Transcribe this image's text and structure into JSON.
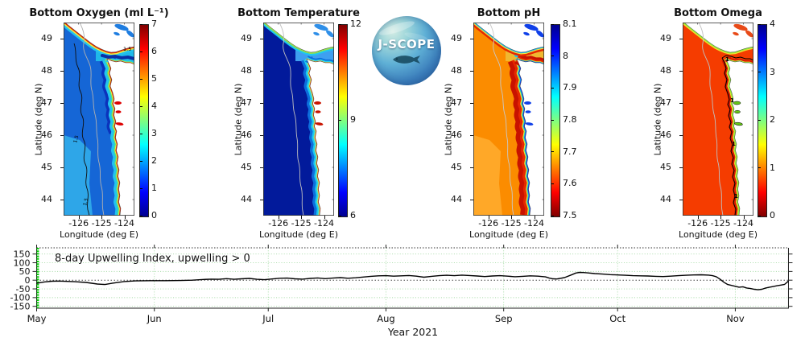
{
  "figure": {
    "background": "#ffffff"
  },
  "logo": {
    "label": "J-SCOPE"
  },
  "map_shared": {
    "ylabel": "Latitude (deg N)",
    "xlabel": "Longitude (deg E)",
    "lat_tick_labels": [
      "49",
      "48",
      "47",
      "46",
      "45",
      "44"
    ],
    "lon_tick_labels": [
      "-126",
      "-125",
      "-124"
    ],
    "land_color": "#FFFFFF",
    "jet_stops": [
      [
        0,
        "#00008F"
      ],
      [
        0.125,
        "#0000FF"
      ],
      [
        0.375,
        "#00FFFF"
      ],
      [
        0.625,
        "#FFFF00"
      ],
      [
        0.875,
        "#FF0000"
      ],
      [
        1,
        "#800000"
      ]
    ]
  },
  "panels": [
    {
      "id": "bottom-oxygen",
      "title": "Bottom Oxygen (ml L⁻¹)",
      "colorbar": {
        "min": 0,
        "max": 7,
        "tick_values": [
          0,
          1,
          2,
          3,
          4,
          5,
          6,
          7
        ],
        "tick_labels": [
          "0",
          "1",
          "2",
          "3",
          "4",
          "5",
          "6",
          "7"
        ],
        "reversed": false
      },
      "black_contour": "offshore",
      "contour_label": "1.5",
      "colors": {
        "base": "#1566D6",
        "sw": "#2EA6E8",
        "north_band": "#0B33BC",
        "coast_bands": [
          [
            "#23C3EF",
            13
          ],
          [
            "#52E57E",
            6.5
          ],
          [
            "#F2EE3E",
            4
          ],
          [
            "#E02800",
            2.2
          ]
        ],
        "vi_bands": [
          [
            "#23C3EF",
            11
          ],
          [
            "#F2EE3E",
            6
          ],
          [
            "#E02800",
            3
          ]
        ],
        "strait": "#1FB9EA",
        "strait_core": "#0A2FA5",
        "strait_patch": null,
        "georgia": "#1F7DE0",
        "estuary": "#DD0000",
        "estuary_stroke": null,
        "contour_gray": "#B0B0B0",
        "contour_black": "#101010"
      }
    },
    {
      "id": "bottom-temperature",
      "title": "Bottom Temperature",
      "colorbar": {
        "min": 6,
        "max": 12,
        "tick_values": [
          6,
          9,
          12
        ],
        "tick_labels": [
          "6",
          "9",
          "12"
        ],
        "reversed": false
      },
      "black_contour": null,
      "contour_label": null,
      "colors": {
        "base": "#021A9B",
        "sw": null,
        "north_band": null,
        "coast_bands": [
          [
            "#0D6EDC",
            15
          ],
          [
            "#1BC9F1",
            8.5
          ],
          [
            "#58E2C2",
            4.5
          ],
          [
            "#F0E840",
            2.6
          ],
          [
            "#E83000",
            1.4
          ]
        ],
        "vi_bands": [
          [
            "#1BC9F1",
            8
          ],
          [
            "#90E050",
            4
          ]
        ],
        "strait": "#3E9FF0",
        "strait_core": null,
        "strait_patch": null,
        "georgia": "#2F8FE8",
        "estuary": "#C81400",
        "estuary_stroke": null,
        "contour_gray": "#C0C0C0",
        "contour_black": null
      }
    },
    {
      "id": "bottom-ph",
      "title": "Bottom pH",
      "colorbar": {
        "min": 7.5,
        "max": 8.1,
        "tick_values": [
          7.5,
          7.6,
          7.7,
          7.8,
          7.9,
          8,
          8.1
        ],
        "tick_labels": [
          "7.5",
          "7.6",
          "7.7",
          "7.8",
          "7.9",
          "8",
          "8.1"
        ],
        "reversed": true
      },
      "black_contour": null,
      "contour_label": null,
      "colors": {
        "base": "#FB8C00",
        "sw": "#FFA828",
        "north_band": null,
        "coast_bands": [
          [
            "#C81200",
            24
          ],
          [
            "#E62800",
            13
          ],
          [
            "#F2E63C",
            6.5
          ],
          [
            "#55E070",
            4.6
          ],
          [
            "#12C8F0",
            3.4
          ],
          [
            "#1040E8",
            2.2
          ]
        ],
        "vi_bands": [
          [
            "#E62800",
            10
          ],
          [
            "#F2E63C",
            5
          ],
          [
            "#18B0E8",
            2.6
          ]
        ],
        "strait": "#F0B830",
        "strait_core": null,
        "strait_patch": "#20C8E8",
        "georgia": "#1040E8",
        "estuary": "#1040E8",
        "estuary_stroke": null,
        "contour_gray": "#C8C8C8",
        "contour_black": null
      }
    },
    {
      "id": "bottom-omega",
      "title": "Bottom Omega",
      "colorbar": {
        "min": 0,
        "max": 4,
        "tick_values": [
          0,
          1,
          2,
          3,
          4
        ],
        "tick_labels": [
          "0",
          "1",
          "2",
          "3",
          "4"
        ],
        "reversed": true
      },
      "black_contour": "coastal",
      "contour_label": "1",
      "colors": {
        "base": "#F53C00",
        "sw": null,
        "north_band": null,
        "coast_bands": [
          [
            "#D81800",
            12
          ],
          [
            "#F0E030",
            5
          ],
          [
            "#8FE838",
            3
          ]
        ],
        "vi_bands": [
          [
            "#F0E030",
            5.5
          ],
          [
            "#8FE838",
            3
          ]
        ],
        "strait": "#F53C00",
        "strait_core": null,
        "strait_patch": null,
        "georgia": "#E84A18",
        "estuary": "#66C818",
        "estuary_stroke": "#000000",
        "contour_gray": "#C0C0C0",
        "contour_black": "#000000"
      }
    }
  ],
  "chart_data": [
    {
      "type": "heatmap",
      "title": "Bottom Oxygen (ml L⁻¹)",
      "xlabel": "Longitude (deg E)",
      "ylabel": "Latitude (deg N)",
      "x_ticks": [
        -126,
        -125,
        -124
      ],
      "y_ticks": [
        49,
        48,
        47,
        46,
        45,
        44
      ],
      "lon_range": [
        -126.7,
        -123.6
      ],
      "lat_range": [
        43.5,
        49.5
      ],
      "colormap": "jet",
      "colorbar_range": [
        0,
        7
      ],
      "colorbar_ticks": [
        0,
        1,
        2,
        3,
        4,
        5,
        6,
        7
      ],
      "contour_labels": [
        "1.5"
      ],
      "summary": "Low oxygen (blue, 0-2) offshore, cyan-green band on shelf, high values (red, 6-7) at coast, estuaries and along Vancouver Island"
    },
    {
      "type": "heatmap",
      "title": "Bottom Temperature",
      "xlabel": "Longitude (deg E)",
      "ylabel": "Latitude (deg N)",
      "x_ticks": [
        -126,
        -125,
        -124
      ],
      "y_ticks": [
        49,
        48,
        47,
        46,
        45,
        44
      ],
      "lon_range": [
        -126.7,
        -123.6
      ],
      "lat_range": [
        43.5,
        49.5
      ],
      "colormap": "jet",
      "colorbar_range": [
        6,
        12
      ],
      "colorbar_ticks": [
        6,
        9,
        12
      ],
      "contour_labels": [],
      "summary": "Cold deep water (dark blue, ~6) offshore, warmer cyan band on shelf, warmest (red, ~12) in shallow estuaries"
    },
    {
      "type": "heatmap",
      "title": "Bottom pH",
      "xlabel": "Longitude (deg E)",
      "ylabel": "Latitude (deg N)",
      "x_ticks": [
        -126,
        -125,
        -124
      ],
      "y_ticks": [
        49,
        48,
        47,
        46,
        45,
        44
      ],
      "lon_range": [
        -126.7,
        -123.6
      ],
      "lat_range": [
        43.5,
        49.5
      ],
      "colormap": "jet reversed",
      "colorbar_range": [
        7.5,
        8.1
      ],
      "colorbar_ticks": [
        7.5,
        7.6,
        7.7,
        7.8,
        7.9,
        8,
        8.1
      ],
      "contour_labels": [],
      "summary": "Low pH (orange-red, 7.5-7.65) offshore and on shelf, high pH (blue, ~8.0-8.1) band right along the coast and strait"
    },
    {
      "type": "heatmap",
      "title": "Bottom Omega",
      "xlabel": "Longitude (deg E)",
      "ylabel": "Latitude (deg N)",
      "x_ticks": [
        -126,
        -125,
        -124
      ],
      "y_ticks": [
        49,
        48,
        47,
        46,
        45,
        44
      ],
      "lon_range": [
        -126.7,
        -123.6
      ],
      "lat_range": [
        43.5,
        49.5
      ],
      "colormap": "jet reversed",
      "colorbar_range": [
        0,
        4
      ],
      "colorbar_ticks": [
        0,
        1,
        2,
        3,
        4
      ],
      "contour_labels": [
        "1"
      ],
      "summary": "Undersaturated (orange-red, <1) nearly everywhere, omega=1 black contour hugging the coast with green-yellow saturated fringe"
    },
    {
      "type": "line",
      "title": "8-day Upwelling Index, upwelling > 0",
      "xlabel": "Year 2021",
      "x_tick_labels": [
        "May",
        "Jun",
        "Jul",
        "Aug",
        "Sep",
        "Oct",
        "Nov"
      ],
      "month_start_days": [
        0,
        31,
        61,
        92,
        123,
        153,
        184
      ],
      "y_ticks": [
        150,
        100,
        50,
        0,
        -50,
        -100,
        -150
      ],
      "ylim": [
        -175,
        175
      ],
      "x_day_range": [
        0,
        198
      ],
      "line_color": "#000000",
      "grid_color": "#9FD89F",
      "zero_line": "dotted black",
      "start_marker_color": "#00CC00",
      "points": [
        [
          0,
          -18
        ],
        [
          2,
          -10
        ],
        [
          4,
          -6
        ],
        [
          6,
          -5
        ],
        [
          8,
          -7
        ],
        [
          10,
          -9
        ],
        [
          13,
          -13
        ],
        [
          16,
          -22
        ],
        [
          18,
          -25
        ],
        [
          20,
          -17
        ],
        [
          23,
          -8
        ],
        [
          26,
          -4
        ],
        [
          30,
          -3
        ],
        [
          34,
          -3
        ],
        [
          38,
          -2
        ],
        [
          41,
          0
        ],
        [
          44,
          4
        ],
        [
          46,
          6
        ],
        [
          48,
          5
        ],
        [
          50,
          9
        ],
        [
          52,
          5
        ],
        [
          54,
          8
        ],
        [
          56,
          10
        ],
        [
          58,
          5
        ],
        [
          60,
          3
        ],
        [
          62,
          7
        ],
        [
          64,
          11
        ],
        [
          66,
          12
        ],
        [
          68,
          8
        ],
        [
          70,
          6
        ],
        [
          72,
          10
        ],
        [
          74,
          13
        ],
        [
          76,
          9
        ],
        [
          78,
          12
        ],
        [
          80,
          15
        ],
        [
          82,
          11
        ],
        [
          84,
          14
        ],
        [
          86,
          18
        ],
        [
          88,
          22
        ],
        [
          90,
          25
        ],
        [
          92,
          26
        ],
        [
          94,
          23
        ],
        [
          96,
          25
        ],
        [
          98,
          27
        ],
        [
          100,
          23
        ],
        [
          102,
          17
        ],
        [
          104,
          22
        ],
        [
          106,
          26
        ],
        [
          108,
          28
        ],
        [
          110,
          26
        ],
        [
          112,
          29
        ],
        [
          114,
          27
        ],
        [
          116,
          24
        ],
        [
          118,
          21
        ],
        [
          120,
          24
        ],
        [
          122,
          26
        ],
        [
          124,
          23
        ],
        [
          126,
          20
        ],
        [
          128,
          22
        ],
        [
          130,
          25
        ],
        [
          132,
          23
        ],
        [
          134,
          19
        ],
        [
          135,
          12
        ],
        [
          136,
          8
        ],
        [
          137,
          7
        ],
        [
          139,
          15
        ],
        [
          141,
          32
        ],
        [
          142,
          41
        ],
        [
          143,
          45
        ],
        [
          144,
          44
        ],
        [
          145,
          42
        ],
        [
          147,
          38
        ],
        [
          149,
          35
        ],
        [
          151,
          32
        ],
        [
          153,
          30
        ],
        [
          155,
          28
        ],
        [
          157,
          26
        ],
        [
          159,
          25
        ],
        [
          161,
          24
        ],
        [
          163,
          22
        ],
        [
          165,
          21
        ],
        [
          167,
          23
        ],
        [
          169,
          26
        ],
        [
          171,
          28
        ],
        [
          173,
          30
        ],
        [
          175,
          31
        ],
        [
          177,
          29
        ],
        [
          178,
          26
        ],
        [
          179,
          20
        ],
        [
          180,
          5
        ],
        [
          181,
          -12
        ],
        [
          182,
          -25
        ],
        [
          183,
          -30
        ],
        [
          184,
          -35
        ],
        [
          185,
          -40
        ],
        [
          186,
          -38
        ],
        [
          187,
          -45
        ],
        [
          188,
          -48
        ],
        [
          189,
          -52
        ],
        [
          190,
          -55
        ],
        [
          191,
          -52
        ],
        [
          192,
          -45
        ],
        [
          193,
          -40
        ],
        [
          194,
          -36
        ],
        [
          195,
          -32
        ],
        [
          196,
          -28
        ],
        [
          197,
          -24
        ],
        [
          198,
          -5
        ]
      ]
    }
  ]
}
